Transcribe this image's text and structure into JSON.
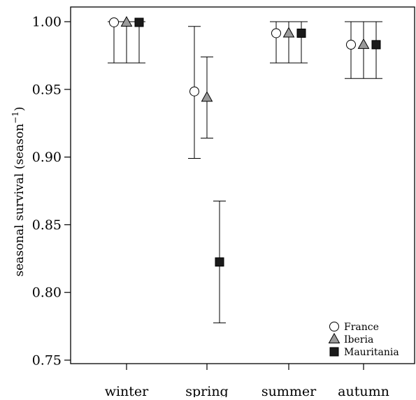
{
  "chart_data": {
    "type": "scatter",
    "title": "",
    "xlabel": "",
    "ylabel": "seasonal survival (season",
    "ylabel_superscript": "−1",
    "ylabel_close": ")",
    "categories": [
      "winter",
      "spring",
      "summer",
      "autumn"
    ],
    "ylim": [
      0.75,
      1.0
    ],
    "yticks": [
      0.75,
      0.8,
      0.85,
      0.9,
      0.95,
      1.0
    ],
    "ytick_labels": [
      "0.75",
      "0.80",
      "0.85",
      "0.90",
      "0.95",
      "1.00"
    ],
    "grid": false,
    "legend_position": "bottom-right",
    "series": [
      {
        "name": "France",
        "marker": "circle",
        "fill": "#ffffff",
        "values": [
          0.9995,
          0.9485,
          0.9915,
          0.983
        ],
        "lower": [
          0.9695,
          0.899,
          0.9695,
          0.958
        ],
        "upper": [
          1.0,
          0.9965,
          1.0,
          1.0
        ]
      },
      {
        "name": "Iberia",
        "marker": "triangle",
        "fill": "#9a9a9a",
        "values": [
          0.9995,
          0.944,
          0.9915,
          0.983
        ],
        "lower": [
          0.9695,
          0.914,
          0.9695,
          0.958
        ],
        "upper": [
          1.0,
          0.974,
          1.0,
          1.0
        ]
      },
      {
        "name": "Mauritania",
        "marker": "square",
        "fill": "#1a1a1a",
        "values": [
          0.9995,
          0.8225,
          0.9915,
          0.983
        ],
        "lower": [
          0.9695,
          0.7775,
          0.9695,
          0.958
        ],
        "upper": [
          1.0,
          0.8675,
          1.0,
          1.0
        ]
      }
    ]
  }
}
